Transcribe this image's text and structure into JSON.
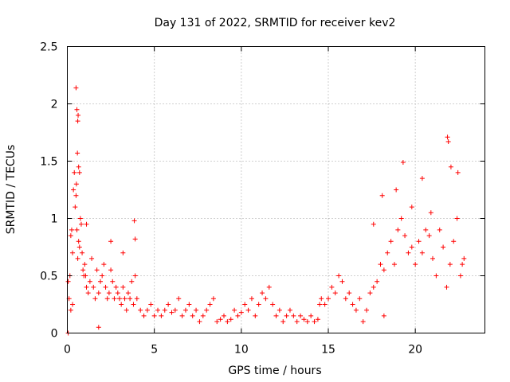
{
  "chart_data": {
    "type": "scatter",
    "title": "Day 131 of 2022, SRMTID for receiver kev2",
    "xlabel": "GPS time / hours",
    "ylabel": "SRMTID / TECUs",
    "xlim": [
      0,
      24
    ],
    "ylim": [
      0,
      2.5
    ],
    "xticks": [
      0,
      5,
      10,
      15,
      20
    ],
    "xtick_labels": [
      "0",
      "5",
      "10",
      "15",
      "20"
    ],
    "yticks": [
      0,
      0.5,
      1,
      1.5,
      2,
      2.5
    ],
    "ytick_labels": [
      "0",
      "0.5",
      "1",
      "1.5",
      "2",
      "2.5"
    ],
    "grid": true,
    "marker": "+",
    "color": "#ff0000",
    "series": [
      {
        "name": "SRMTID",
        "x": [
          0.05,
          0.1,
          0.15,
          0.2,
          0.25,
          0.3,
          0.35,
          0.4,
          0.45,
          0.5,
          0.55,
          0.6,
          0.65,
          0.7,
          0.75,
          0.8,
          0.85,
          0.9,
          0.95,
          1.0,
          1.05,
          1.1,
          1.2,
          1.3,
          1.4,
          1.5,
          1.6,
          1.7,
          1.8,
          1.9,
          2.0,
          2.1,
          2.2,
          2.3,
          2.4,
          2.5,
          2.6,
          2.7,
          2.8,
          2.9,
          3.0,
          3.1,
          3.2,
          3.3,
          3.4,
          3.5,
          3.6,
          3.7,
          3.8,
          3.9,
          4.0,
          4.2,
          4.4,
          4.6,
          4.8,
          5.0,
          5.2,
          5.4,
          5.6,
          5.8,
          6.0,
          6.2,
          6.4,
          6.6,
          6.8,
          7.0,
          7.2,
          7.4,
          7.6,
          7.8,
          8.0,
          8.2,
          8.4,
          8.6,
          8.8,
          9.0,
          9.2,
          9.4,
          9.6,
          9.8,
          10.0,
          10.2,
          10.4,
          10.6,
          10.8,
          11.0,
          11.2,
          11.4,
          11.6,
          11.8,
          12.0,
          12.2,
          12.4,
          12.6,
          12.8,
          13.0,
          13.2,
          13.4,
          13.6,
          13.8,
          14.0,
          14.2,
          14.4,
          14.6,
          14.8,
          15.0,
          15.2,
          15.4,
          15.6,
          15.8,
          16.0,
          16.2,
          16.4,
          16.6,
          16.8,
          17.0,
          17.2,
          17.4,
          17.6,
          17.8,
          18.0,
          18.2,
          18.4,
          18.6,
          18.8,
          19.0,
          19.2,
          19.4,
          19.6,
          19.8,
          20.0,
          20.2,
          20.4,
          20.6,
          20.8,
          21.0,
          21.2,
          21.4,
          21.6,
          21.8,
          22.0,
          22.2,
          22.4,
          22.6,
          22.8,
          0.5,
          0.55,
          0.6,
          0.62,
          0.58,
          0.65,
          0.52,
          0.7,
          3.85,
          3.9,
          21.85,
          21.9,
          22.05,
          22.45,
          19.3,
          20.4,
          20.9,
          0.3,
          0.2,
          1.1,
          2.5,
          3.2,
          17.6,
          18.1,
          18.9,
          19.8,
          22.7,
          14.5,
          18.2,
          1.8,
          0.05
        ],
        "y": [
          0.45,
          0.3,
          0.5,
          0.85,
          0.9,
          0.7,
          1.25,
          1.4,
          1.1,
          1.2,
          0.9,
          0.65,
          0.8,
          0.75,
          1.0,
          0.95,
          0.7,
          0.55,
          0.5,
          0.6,
          0.5,
          0.4,
          0.35,
          0.45,
          0.65,
          0.4,
          0.3,
          0.55,
          0.35,
          0.45,
          0.5,
          0.6,
          0.4,
          0.3,
          0.35,
          0.55,
          0.45,
          0.3,
          0.4,
          0.35,
          0.3,
          0.25,
          0.4,
          0.3,
          0.2,
          0.35,
          0.3,
          0.45,
          0.25,
          0.5,
          0.3,
          0.2,
          0.15,
          0.2,
          0.25,
          0.15,
          0.2,
          0.15,
          0.2,
          0.25,
          0.18,
          0.2,
          0.3,
          0.15,
          0.2,
          0.25,
          0.15,
          0.2,
          0.1,
          0.15,
          0.2,
          0.25,
          0.3,
          0.1,
          0.12,
          0.15,
          0.1,
          0.12,
          0.2,
          0.15,
          0.18,
          0.25,
          0.2,
          0.3,
          0.15,
          0.25,
          0.35,
          0.3,
          0.4,
          0.25,
          0.15,
          0.2,
          0.1,
          0.15,
          0.2,
          0.15,
          0.1,
          0.15,
          0.12,
          0.1,
          0.15,
          0.1,
          0.12,
          0.3,
          0.25,
          0.3,
          0.4,
          0.35,
          0.5,
          0.45,
          0.3,
          0.35,
          0.25,
          0.2,
          0.3,
          0.1,
          0.2,
          0.35,
          0.4,
          0.45,
          0.6,
          0.55,
          0.7,
          0.8,
          0.6,
          0.9,
          1.0,
          0.85,
          0.7,
          0.75,
          0.6,
          0.8,
          0.7,
          0.9,
          0.85,
          0.65,
          0.5,
          0.9,
          0.75,
          0.4,
          0.6,
          0.8,
          1.0,
          0.5,
          0.65,
          2.14,
          1.95,
          1.85,
          1.9,
          1.57,
          1.45,
          1.3,
          1.4,
          0.98,
          0.82,
          1.71,
          1.67,
          1.45,
          1.4,
          1.49,
          1.35,
          1.05,
          0.25,
          0.2,
          0.95,
          0.8,
          0.7,
          0.95,
          1.2,
          1.25,
          1.1,
          0.6,
          0.25,
          0.15,
          0.05,
          0.0
        ]
      }
    ]
  }
}
